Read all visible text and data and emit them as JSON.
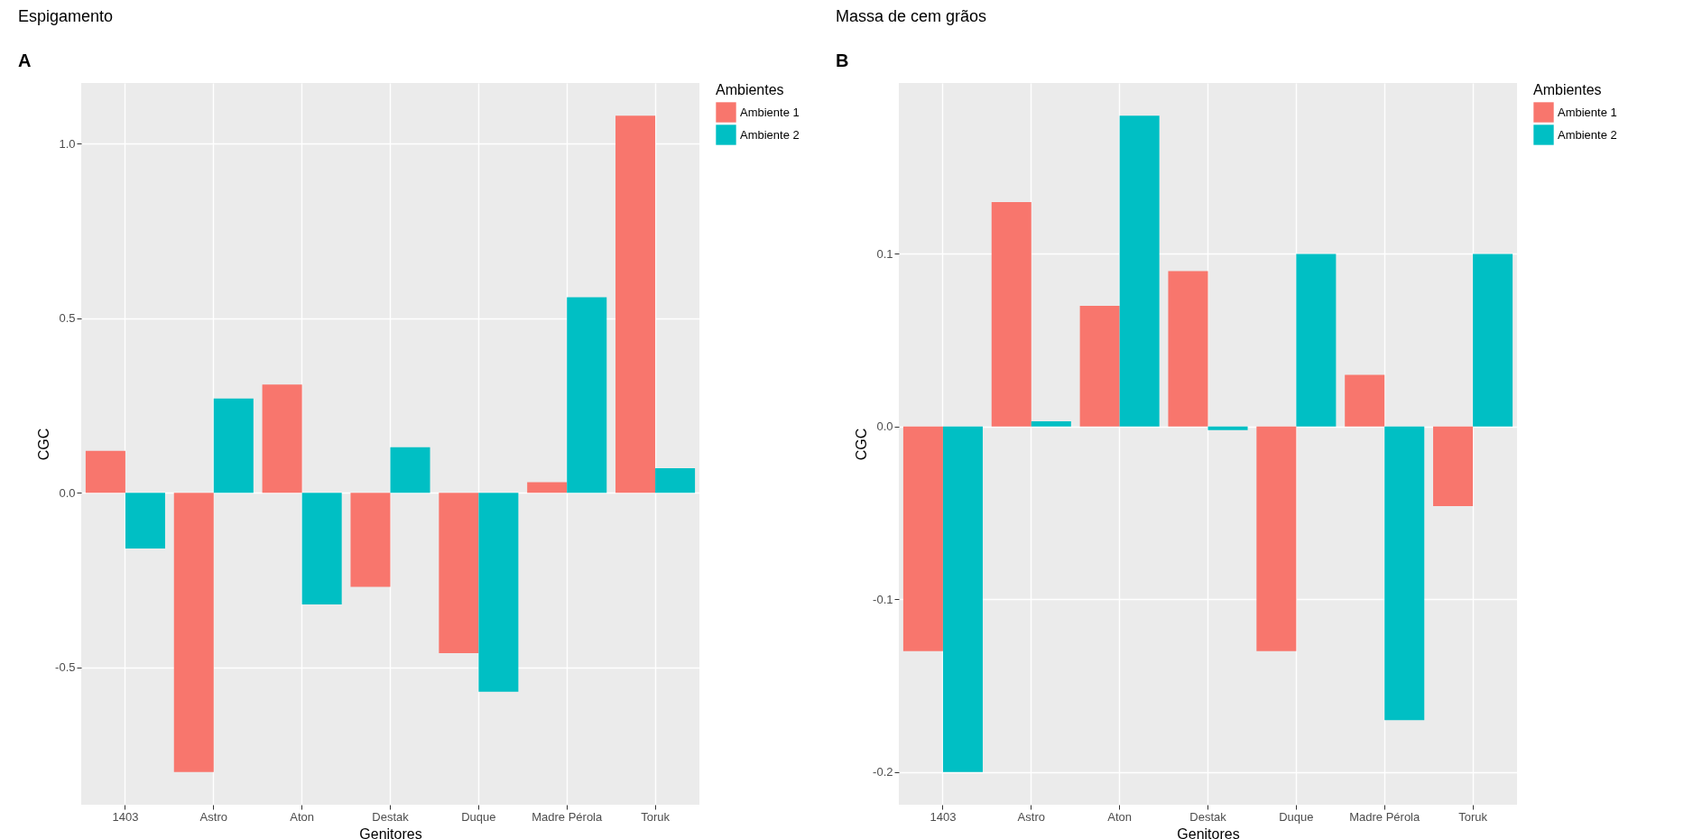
{
  "chart_data": [
    {
      "type": "bar",
      "title": "Espigamento",
      "xlabel": "Genitores",
      "ylabel": "CGC",
      "legend_title": "Ambientes",
      "legend": "right",
      "grid": true,
      "annotations": [
        "A"
      ],
      "categories": [
        "1403",
        "Astro",
        "Aton",
        "Destak",
        "Duque",
        "Madre Pérola",
        "Toruk"
      ],
      "series": [
        {
          "name": "Ambiente 1",
          "color": "#f8766d",
          "values": [
            0.12,
            -0.8,
            0.31,
            -0.27,
            -0.46,
            0.03,
            1.08
          ]
        },
        {
          "name": "Ambiente 2",
          "color": "#00bfc4",
          "values": [
            -0.16,
            0.27,
            -0.32,
            0.13,
            -0.57,
            0.56,
            0.07
          ]
        }
      ],
      "ylim": [
        -0.894,
        1.174
      ],
      "yticks": [
        {
          "value": -0.5,
          "label": "-0.5"
        },
        {
          "value": 0,
          "label": "0.0"
        },
        {
          "value": 0.5,
          "label": "0.5"
        },
        {
          "value": 1,
          "label": "1.0"
        }
      ]
    },
    {
      "type": "bar",
      "title": "Massa de cem grãos",
      "xlabel": "Genitores",
      "ylabel": "CGC",
      "legend_title": "Ambientes",
      "legend": "right",
      "grid": true,
      "annotations": [
        "B"
      ],
      "categories": [
        "1403",
        "Astro",
        "Aton",
        "Destak",
        "Duque",
        "Madre Pérola",
        "Toruk"
      ],
      "series": [
        {
          "name": "Ambiente 1",
          "color": "#f8766d",
          "values": [
            -0.13,
            0.13,
            0.07,
            0.09,
            -0.13,
            0.03,
            -0.046
          ]
        },
        {
          "name": "Ambiente 2",
          "color": "#00bfc4",
          "values": [
            -0.2,
            0.003,
            0.18,
            -0.002,
            0.1,
            -0.17,
            0.1
          ]
        }
      ],
      "ylim": [
        -0.219,
        0.199
      ],
      "yticks": [
        {
          "value": -0.2,
          "label": "-0.2"
        },
        {
          "value": -0.1,
          "label": "-0.1"
        },
        {
          "value": 0,
          "label": "0.0"
        },
        {
          "value": 0.1,
          "label": "0.1"
        }
      ]
    }
  ]
}
